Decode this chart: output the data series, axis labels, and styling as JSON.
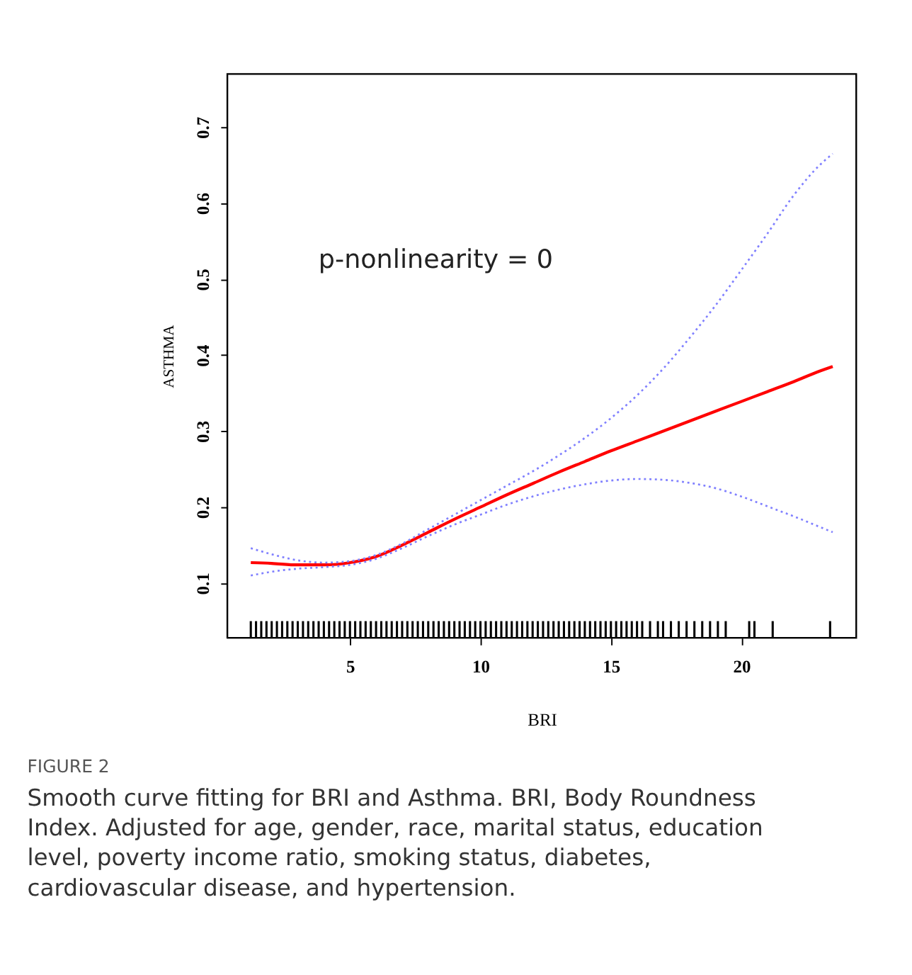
{
  "chart_data": {
    "type": "line",
    "title": "FIGURE 2",
    "subtitle": "Smooth curve fitting for BRI and Asthma. BRI, Body Roundness Index. Adjusted for age, gender, race, marital status, education level, poverty income ratio, smoking status, diabetes, cardiovascular disease, and hypertension.",
    "xlabel": "BRI",
    "ylabel": "ASTHMA",
    "annotations": [
      "p-nonlinearity = 0"
    ],
    "xlim": [
      0.3,
      24.4
    ],
    "xticks": [
      5,
      10,
      15,
      20
    ],
    "ylim": [
      0.028,
      0.77
    ],
    "yticks": [
      0.1,
      0.2,
      0.3,
      0.4,
      0.5,
      0.6,
      0.7
    ],
    "grid": false,
    "marker": "none",
    "series": [
      {
        "color": "#ff0000",
        "line_style": "solid",
        "x": [
          1.2,
          2,
          3,
          4,
          5,
          6,
          7,
          8,
          9,
          10,
          11,
          12,
          13,
          14,
          15,
          16,
          17,
          18,
          19,
          20,
          21,
          22,
          23,
          23.5
        ],
        "values": [
          0.127,
          0.126,
          0.124,
          0.124,
          0.127,
          0.135,
          0.15,
          0.167,
          0.184,
          0.2,
          0.216,
          0.231,
          0.246,
          0.26,
          0.274,
          0.287,
          0.3,
          0.313,
          0.326,
          0.339,
          0.352,
          0.365,
          0.379,
          0.385
        ]
      },
      {
        "color": "#8080ff",
        "line_style": "dotted",
        "x": [
          1.2,
          2,
          3,
          4,
          5,
          6,
          7,
          8,
          9,
          10,
          11,
          12,
          13,
          14,
          15,
          16,
          17,
          18,
          19,
          20,
          21,
          22,
          23,
          23.5
        ],
        "values": [
          0.11,
          0.115,
          0.119,
          0.121,
          0.124,
          0.132,
          0.146,
          0.162,
          0.177,
          0.19,
          0.203,
          0.214,
          0.223,
          0.23,
          0.235,
          0.237,
          0.236,
          0.232,
          0.225,
          0.214,
          0.201,
          0.188,
          0.174,
          0.167
        ]
      },
      {
        "color": "#8080ff",
        "line_style": "dotted",
        "x": [
          1.2,
          2,
          3,
          4,
          5,
          6,
          7,
          8,
          9,
          10,
          11,
          12,
          13,
          14,
          15,
          16,
          17,
          18,
          19,
          20,
          21,
          22,
          23,
          23.5
        ],
        "values": [
          0.146,
          0.138,
          0.13,
          0.127,
          0.129,
          0.137,
          0.152,
          0.171,
          0.19,
          0.209,
          0.228,
          0.247,
          0.268,
          0.291,
          0.317,
          0.347,
          0.382,
          0.422,
          0.465,
          0.512,
          0.56,
          0.61,
          0.65,
          0.665
        ]
      },
      {
        "type": "bar",
        "color": "#000000",
        "x": [
          1.2,
          1.4,
          1.6,
          1.8,
          2.0,
          2.2,
          2.4,
          2.6,
          2.8,
          3.0,
          3.2,
          3.4,
          3.6,
          3.8,
          4.0,
          4.2,
          4.4,
          4.6,
          4.8,
          5.0,
          5.2,
          5.4,
          5.6,
          5.8,
          6.0,
          6.2,
          6.4,
          6.6,
          6.8,
          7.0,
          7.2,
          7.4,
          7.6,
          7.8,
          8.0,
          8.2,
          8.4,
          8.6,
          8.8,
          9.0,
          9.2,
          9.4,
          9.6,
          9.8,
          10.0,
          10.2,
          10.4,
          10.6,
          10.8,
          11.0,
          11.2,
          11.4,
          11.6,
          11.8,
          12.0,
          12.2,
          12.4,
          12.6,
          12.8,
          13.0,
          13.2,
          13.4,
          13.6,
          13.8,
          14.0,
          14.2,
          14.4,
          14.6,
          14.8,
          15.0,
          15.2,
          15.4,
          15.6,
          15.8,
          16.0,
          16.2,
          16.5,
          16.8,
          17.0,
          17.3,
          17.6,
          17.9,
          18.2,
          18.5,
          18.8,
          19.1,
          19.4,
          20.3,
          20.5,
          21.2,
          23.4
        ],
        "base": [
          0.028,
          0.028,
          0.028,
          0.028,
          0.028,
          0.028,
          0.028,
          0.028,
          0.028,
          0.028,
          0.028,
          0.028,
          0.028,
          0.028,
          0.028,
          0.028,
          0.028,
          0.028,
          0.028,
          0.028,
          0.028,
          0.028,
          0.028,
          0.028,
          0.028,
          0.028,
          0.028,
          0.028,
          0.028,
          0.028,
          0.028,
          0.028,
          0.028,
          0.028,
          0.028,
          0.028,
          0.028,
          0.028,
          0.028,
          0.028,
          0.028,
          0.028,
          0.028,
          0.028,
          0.028,
          0.028,
          0.028,
          0.028,
          0.028,
          0.028,
          0.028,
          0.028,
          0.028,
          0.028,
          0.028,
          0.028,
          0.028,
          0.028,
          0.028,
          0.028,
          0.028,
          0.028,
          0.028,
          0.028,
          0.028,
          0.028,
          0.028,
          0.028,
          0.028,
          0.028,
          0.028,
          0.028,
          0.028,
          0.028,
          0.028,
          0.028,
          0.028,
          0.028,
          0.028,
          0.028,
          0.028,
          0.028,
          0.028,
          0.028,
          0.028,
          0.028,
          0.028,
          0.028,
          0.028,
          0.028,
          0.028
        ],
        "values": [
          0.022,
          0.022,
          0.022,
          0.022,
          0.022,
          0.022,
          0.022,
          0.022,
          0.022,
          0.022,
          0.022,
          0.022,
          0.022,
          0.022,
          0.022,
          0.022,
          0.022,
          0.022,
          0.022,
          0.022,
          0.022,
          0.022,
          0.022,
          0.022,
          0.022,
          0.022,
          0.022,
          0.022,
          0.022,
          0.022,
          0.022,
          0.022,
          0.022,
          0.022,
          0.022,
          0.022,
          0.022,
          0.022,
          0.022,
          0.022,
          0.022,
          0.022,
          0.022,
          0.022,
          0.022,
          0.022,
          0.022,
          0.022,
          0.022,
          0.022,
          0.022,
          0.022,
          0.022,
          0.022,
          0.022,
          0.022,
          0.022,
          0.022,
          0.022,
          0.022,
          0.022,
          0.022,
          0.022,
          0.022,
          0.022,
          0.022,
          0.022,
          0.022,
          0.022,
          0.022,
          0.022,
          0.022,
          0.022,
          0.022,
          0.022,
          0.022,
          0.022,
          0.022,
          0.022,
          0.022,
          0.022,
          0.022,
          0.022,
          0.022,
          0.022,
          0.022,
          0.022,
          0.022,
          0.022,
          0.022,
          0.022
        ]
      }
    ]
  }
}
